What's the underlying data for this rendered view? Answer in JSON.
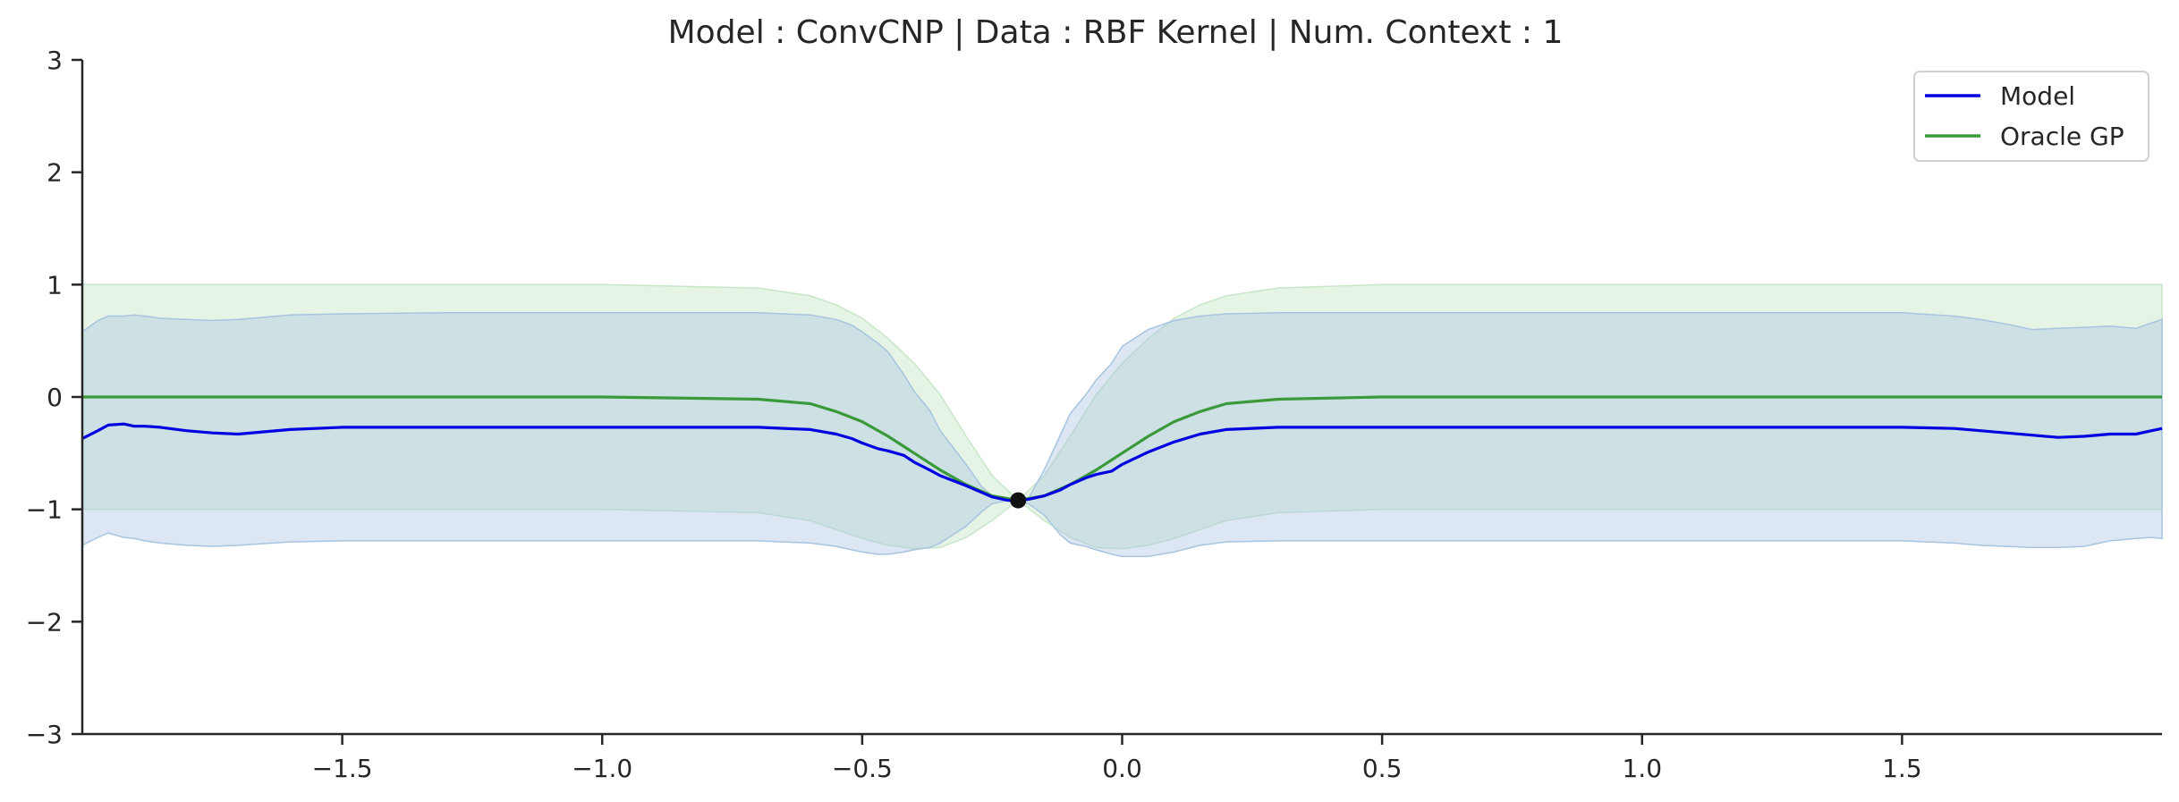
{
  "chart_data": {
    "type": "line",
    "title": "Model : ConvCNP | Data : RBF Kernel | Num. Context : 1",
    "xlabel": "",
    "ylabel": "",
    "xlim": [
      -2.0,
      2.0
    ],
    "ylim": [
      -3,
      3
    ],
    "grid": false,
    "legend_position": "top-right",
    "x_ticks": [
      -1.5,
      -1.0,
      -0.5,
      0.0,
      0.5,
      1.0,
      1.5
    ],
    "x_tick_labels": [
      "−1.5",
      "−1.0",
      "−0.5",
      "0.0",
      "0.5",
      "1.0",
      "1.5"
    ],
    "y_ticks": [
      3,
      2,
      1,
      0,
      -1,
      -2,
      -3
    ],
    "y_tick_labels": [
      "3",
      "2",
      "1",
      "0",
      "−1",
      "−2",
      "−3"
    ],
    "context_points": [
      {
        "x": -0.2,
        "y": -0.92
      }
    ],
    "series": [
      {
        "name": "Model",
        "color": "#0000e0",
        "band_color": "#a7c4e0",
        "x": [
          -2.0,
          -1.97,
          -1.95,
          -1.92,
          -1.9,
          -1.88,
          -1.85,
          -1.8,
          -1.75,
          -1.7,
          -1.6,
          -1.5,
          -1.3,
          -1.0,
          -0.7,
          -0.6,
          -0.55,
          -0.52,
          -0.5,
          -0.47,
          -0.45,
          -0.42,
          -0.4,
          -0.37,
          -0.35,
          -0.3,
          -0.27,
          -0.25,
          -0.22,
          -0.2,
          -0.18,
          -0.15,
          -0.12,
          -0.1,
          -0.07,
          -0.05,
          -0.02,
          0.0,
          0.05,
          0.1,
          0.15,
          0.2,
          0.3,
          0.5,
          1.0,
          1.5,
          1.6,
          1.65,
          1.7,
          1.75,
          1.8,
          1.85,
          1.9,
          1.95,
          1.98,
          2.0
        ],
        "values": [
          -0.37,
          -0.3,
          -0.25,
          -0.24,
          -0.26,
          -0.26,
          -0.27,
          -0.3,
          -0.32,
          -0.33,
          -0.29,
          -0.27,
          -0.27,
          -0.27,
          -0.27,
          -0.29,
          -0.33,
          -0.37,
          -0.41,
          -0.46,
          -0.48,
          -0.52,
          -0.58,
          -0.65,
          -0.7,
          -0.79,
          -0.85,
          -0.89,
          -0.92,
          -0.92,
          -0.91,
          -0.88,
          -0.83,
          -0.78,
          -0.72,
          -0.69,
          -0.66,
          -0.6,
          -0.49,
          -0.4,
          -0.33,
          -0.29,
          -0.27,
          -0.27,
          -0.27,
          -0.27,
          -0.28,
          -0.3,
          -0.32,
          -0.34,
          -0.36,
          -0.35,
          -0.33,
          -0.33,
          -0.3,
          -0.28
        ],
        "lower": [
          -1.32,
          -1.25,
          -1.21,
          -1.25,
          -1.26,
          -1.28,
          -1.3,
          -1.32,
          -1.33,
          -1.32,
          -1.29,
          -1.28,
          -1.28,
          -1.28,
          -1.28,
          -1.3,
          -1.33,
          -1.36,
          -1.38,
          -1.4,
          -1.4,
          -1.38,
          -1.36,
          -1.34,
          -1.3,
          -1.15,
          -1.02,
          -0.95,
          -0.92,
          -0.92,
          -0.95,
          -1.05,
          -1.22,
          -1.3,
          -1.33,
          -1.36,
          -1.4,
          -1.42,
          -1.42,
          -1.38,
          -1.32,
          -1.29,
          -1.28,
          -1.28,
          -1.28,
          -1.28,
          -1.3,
          -1.32,
          -1.33,
          -1.34,
          -1.34,
          -1.33,
          -1.28,
          -1.26,
          -1.25,
          -1.26
        ],
        "upper": [
          0.58,
          0.68,
          0.72,
          0.72,
          0.73,
          0.72,
          0.7,
          0.69,
          0.68,
          0.69,
          0.73,
          0.74,
          0.75,
          0.75,
          0.75,
          0.73,
          0.69,
          0.64,
          0.58,
          0.48,
          0.4,
          0.2,
          0.05,
          -0.12,
          -0.3,
          -0.6,
          -0.8,
          -0.88,
          -0.92,
          -0.92,
          -0.9,
          -0.65,
          -0.35,
          -0.15,
          0.02,
          0.15,
          0.3,
          0.45,
          0.6,
          0.68,
          0.72,
          0.74,
          0.75,
          0.75,
          0.75,
          0.75,
          0.72,
          0.69,
          0.65,
          0.6,
          0.61,
          0.62,
          0.63,
          0.61,
          0.66,
          0.69
        ]
      },
      {
        "name": "Oracle GP",
        "color": "#3a9a3a",
        "band_color": "#c8e6c8",
        "x": [
          -2.0,
          -1.0,
          -0.7,
          -0.6,
          -0.55,
          -0.5,
          -0.45,
          -0.4,
          -0.35,
          -0.3,
          -0.25,
          -0.2,
          -0.15,
          -0.1,
          -0.05,
          0.0,
          0.05,
          0.1,
          0.15,
          0.2,
          0.3,
          0.5,
          1.0,
          2.0
        ],
        "values": [
          0.0,
          0.0,
          -0.02,
          -0.06,
          -0.13,
          -0.22,
          -0.35,
          -0.5,
          -0.65,
          -0.78,
          -0.88,
          -0.92,
          -0.88,
          -0.78,
          -0.65,
          -0.5,
          -0.35,
          -0.22,
          -0.13,
          -0.06,
          -0.02,
          0.0,
          0.0,
          0.0
        ],
        "lower": [
          -1.0,
          -1.0,
          -1.03,
          -1.1,
          -1.18,
          -1.26,
          -1.32,
          -1.35,
          -1.34,
          -1.25,
          -1.1,
          -0.92,
          -1.1,
          -1.25,
          -1.34,
          -1.35,
          -1.32,
          -1.26,
          -1.18,
          -1.1,
          -1.03,
          -1.0,
          -1.0,
          -1.0
        ],
        "upper": [
          1.0,
          1.0,
          0.97,
          0.9,
          0.82,
          0.7,
          0.52,
          0.3,
          0.02,
          -0.35,
          -0.7,
          -0.92,
          -0.7,
          -0.35,
          0.02,
          0.3,
          0.52,
          0.7,
          0.82,
          0.9,
          0.97,
          1.0,
          1.0,
          1.0
        ]
      }
    ]
  }
}
